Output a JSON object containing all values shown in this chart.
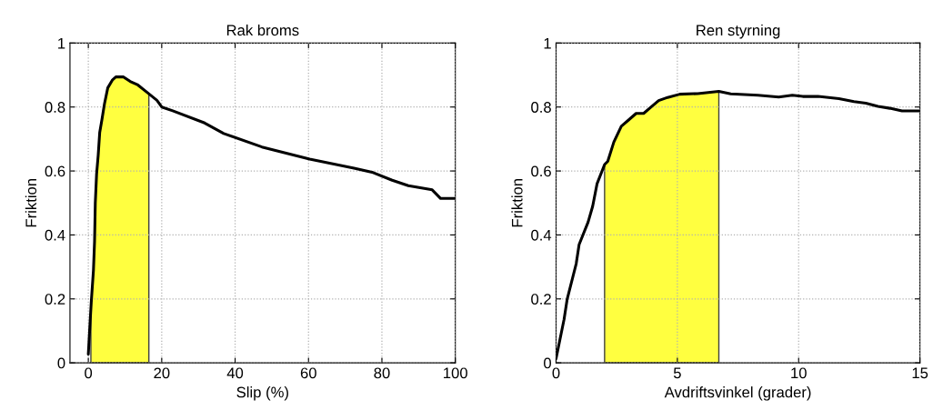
{
  "chart_data": [
    {
      "type": "line",
      "title": "Rak broms",
      "xlabel": "Slip (%)",
      "ylabel": "Friktion",
      "xlim": [
        -5,
        100
      ],
      "xticks": [
        0,
        20,
        40,
        60,
        80,
        100
      ],
      "ylim": [
        0,
        1
      ],
      "yticks": [
        0,
        0.2,
        0.4,
        0.6,
        0.8,
        1
      ],
      "grid": true,
      "series": [
        {
          "type": "area",
          "color": "#ffff40",
          "x": [
            0.7,
            0.8,
            1.4,
            1.7,
            1.9,
            2.25,
            2.7,
            3.1,
            3.7,
            4.4,
            5.3,
            6.6,
            7.5,
            9.6,
            11.4,
            13.5,
            16.1,
            16.5
          ],
          "values": [
            0.14,
            0.19,
            0.29,
            0.38,
            0.5,
            0.59,
            0.65,
            0.72,
            0.76,
            0.81,
            0.86,
            0.885,
            0.894,
            0.894,
            0.88,
            0.869,
            0.845,
            0.84
          ]
        },
        {
          "type": "line",
          "color": "#000000",
          "x": [
            0,
            0.35,
            0.8,
            1.4,
            1.7,
            1.9,
            2.25,
            2.7,
            3.1,
            3.7,
            4.4,
            5.3,
            6.6,
            7.5,
            9.6,
            11.4,
            13.5,
            16.1,
            18.7,
            20,
            23,
            31.7,
            36.9,
            47.3,
            60.3,
            72.4,
            77.6,
            82.8,
            87.2,
            93.7,
            96,
            100
          ],
          "values": [
            0.027,
            0.1,
            0.19,
            0.29,
            0.38,
            0.5,
            0.59,
            0.65,
            0.72,
            0.76,
            0.81,
            0.86,
            0.885,
            0.894,
            0.894,
            0.88,
            0.869,
            0.845,
            0.821,
            0.8,
            0.788,
            0.75,
            0.717,
            0.675,
            0.637,
            0.609,
            0.595,
            0.571,
            0.554,
            0.541,
            0.514,
            0.514
          ]
        }
      ]
    },
    {
      "type": "line",
      "title": "Ren styrning",
      "xlabel": "Avdriftsvinkel (grader)",
      "ylabel": "Friktion",
      "xlim": [
        0,
        15
      ],
      "xticks": [
        0,
        5,
        10,
        15
      ],
      "ylim": [
        0,
        1
      ],
      "yticks": [
        0,
        0.2,
        0.4,
        0.6,
        0.8,
        1
      ],
      "grid": true,
      "series": [
        {
          "type": "area",
          "color": "#ffff40",
          "x": [
            2.0,
            2.13,
            2.38,
            2.69,
            3.0,
            3.3,
            3.61,
            3.92,
            4.23,
            4.6,
            5.1,
            5.84,
            6.71
          ],
          "values": [
            0.62,
            0.63,
            0.69,
            0.74,
            0.76,
            0.78,
            0.78,
            0.8,
            0.82,
            0.83,
            0.84,
            0.842,
            0.849
          ]
        },
        {
          "type": "line",
          "color": "#000000",
          "x": [
            0,
            0.33,
            0.46,
            0.83,
            0.95,
            1.32,
            1.51,
            1.69,
            2.0,
            2.13,
            2.38,
            2.69,
            3.0,
            3.3,
            3.61,
            3.92,
            4.23,
            4.6,
            5.1,
            5.84,
            6.71,
            7.2,
            8.32,
            9.18,
            9.74,
            10.17,
            10.8,
            11.66,
            12.28,
            12.77,
            13.27,
            13.76,
            14.26,
            15
          ],
          "values": [
            0.013,
            0.136,
            0.2,
            0.31,
            0.37,
            0.44,
            0.49,
            0.56,
            0.62,
            0.63,
            0.69,
            0.74,
            0.76,
            0.78,
            0.78,
            0.8,
            0.82,
            0.83,
            0.84,
            0.842,
            0.849,
            0.841,
            0.837,
            0.831,
            0.837,
            0.833,
            0.833,
            0.826,
            0.817,
            0.812,
            0.802,
            0.796,
            0.788,
            0.788
          ]
        }
      ]
    }
  ]
}
